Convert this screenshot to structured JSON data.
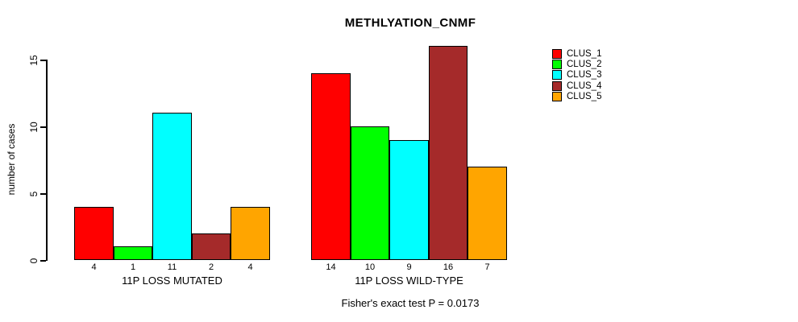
{
  "chart_data": {
    "type": "bar",
    "title": "METHLYATION_CNMF",
    "ylabel": "number of cases",
    "footnote": "Fisher's exact test P = 0.0173",
    "yticks": [
      0,
      5,
      10,
      15
    ],
    "ylim": [
      0,
      16
    ],
    "grid": false,
    "legend_position": "top-right",
    "bar_value_labels": true,
    "categories": [
      "11P LOSS MUTATED",
      "11P LOSS WILD-TYPE"
    ],
    "series": [
      {
        "name": "CLUS_1",
        "color": "#FF0000",
        "values": [
          4,
          14
        ]
      },
      {
        "name": "CLUS_2",
        "color": "#00FF00",
        "values": [
          1,
          10
        ]
      },
      {
        "name": "CLUS_3",
        "color": "#00FFFF",
        "values": [
          11,
          9
        ]
      },
      {
        "name": "CLUS_4",
        "color": "#A52A2A",
        "values": [
          2,
          16
        ]
      },
      {
        "name": "CLUS_5",
        "color": "#FFA500",
        "values": [
          4,
          7
        ]
      }
    ],
    "colors": {
      "background": "#FFFFFF",
      "axis": "#000000",
      "text": "#000000"
    }
  }
}
